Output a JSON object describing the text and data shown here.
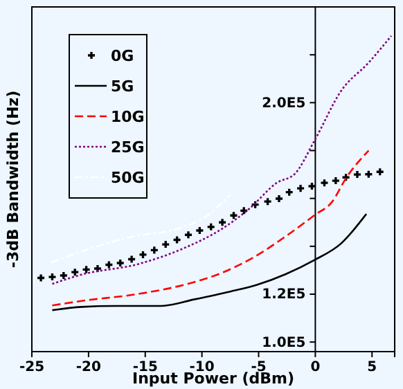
{
  "chart_data": {
    "type": "line",
    "xlabel": "Input Power (dBm)",
    "ylabel": "-3dB Bandwidth (Hz)",
    "xlim": [
      -25,
      7
    ],
    "xticks": [
      -25,
      -20,
      -15,
      -10,
      -5,
      0,
      5
    ],
    "ylim": [
      96000,
      240000
    ],
    "yticks": [
      {
        "value": 100000,
        "label": "1.0E5"
      },
      {
        "value": 120000,
        "label": "1.2E5"
      },
      {
        "value": 140000,
        "label": null
      },
      {
        "value": 160000,
        "label": null
      },
      {
        "value": 180000,
        "label": null
      },
      {
        "value": 200000,
        "label": "2.0E5"
      },
      {
        "value": 220000,
        "label": null
      },
      {
        "value": 240000,
        "label": null
      }
    ],
    "grid": false,
    "legend": "top left",
    "series": [
      {
        "name": "0G",
        "type": "scatter",
        "marker": "cross",
        "color": "#000000",
        "x": [
          -24.2,
          -23.2,
          -22.2,
          -21.2,
          -20.2,
          -19.2,
          -18.2,
          -17.2,
          -16.2,
          -15.2,
          -14.2,
          -13.2,
          -12.2,
          -11.2,
          -10.2,
          -9.2,
          -8.2,
          -7.2,
          -6.3,
          -5.3,
          -4.2,
          -3.2,
          -2.3,
          -1.3,
          -0.3,
          0.8,
          1.8,
          2.7,
          3.7,
          4.7,
          5.7
        ],
        "values": [
          126800,
          127200,
          127800,
          129200,
          130300,
          130700,
          132300,
          133000,
          134600,
          136500,
          138400,
          140800,
          142700,
          144800,
          146600,
          148100,
          150000,
          152900,
          154900,
          157400,
          158700,
          159900,
          162600,
          164200,
          165100,
          166500,
          167400,
          168800,
          170000,
          170100,
          171100
        ]
      },
      {
        "name": "5G",
        "line_style": "solid",
        "color": "#000000",
        "x": [
          -23.2,
          -20.6,
          -17.6,
          -13.6,
          -10.7,
          -7.5,
          -5.1,
          -2.6,
          -0.1,
          2.3,
          4.5
        ],
        "values": [
          113300,
          114700,
          115100,
          115100,
          117800,
          121100,
          124000,
          128400,
          134200,
          141300,
          153500
        ]
      },
      {
        "name": "10G",
        "line_style": "dashed",
        "color": "#ff0000",
        "x": [
          -23.2,
          -20.6,
          -15.6,
          -11.5,
          -8.3,
          -5.4,
          -2.6,
          -0.1,
          1.5,
          2.7,
          4.7
        ],
        "values": [
          115300,
          117200,
          120100,
          124000,
          128800,
          135500,
          144200,
          152900,
          158700,
          168400,
          180000
        ]
      },
      {
        "name": "25G",
        "line_style": "dotted",
        "color": "#800080",
        "x": [
          -23.2,
          -20.6,
          -15.6,
          -11.5,
          -8.3,
          -5.8,
          -3.4,
          -1.8,
          -0.1,
          2.3,
          4.7,
          6.7
        ],
        "values": [
          124300,
          128200,
          132600,
          139400,
          147100,
          155800,
          166500,
          170300,
          183900,
          205100,
          216700,
          227900
        ]
      },
      {
        "name": "50G",
        "line_style": "dashdot",
        "color": "#ffffff",
        "x": [
          -23.3,
          -20.6,
          -16.0,
          -12.3,
          -9.5,
          -7.5
        ],
        "values": [
          133200,
          137900,
          144200,
          147100,
          152900,
          161600
        ]
      }
    ]
  }
}
